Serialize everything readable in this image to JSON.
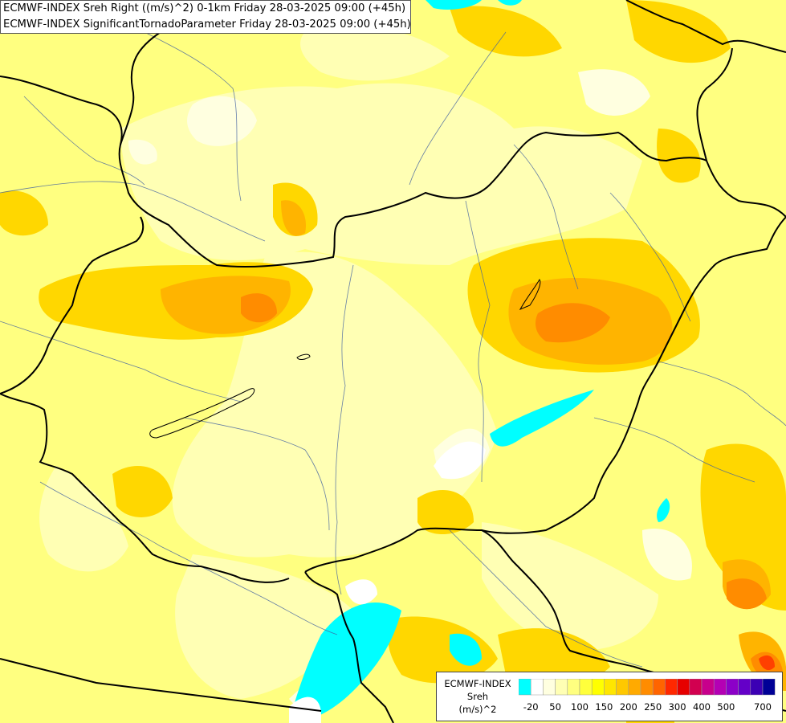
{
  "title_lines": [
    "ECMWF-INDEX Sreh Right ((m/s)^2) 0-1km Friday 28-03-2025 09:00 (+45h)",
    "ECMWF-INDEX SignificantTornadoParameter Friday 28-03-2025 09:00 (+45h)"
  ],
  "legend": {
    "model": "ECMWF-INDEX",
    "parameter": "Sreh",
    "unit": "(m/s)^2",
    "swatch_colors": [
      "#00ffff",
      "#ffffff",
      "#ffffe0",
      "#ffffb4",
      "#ffff80",
      "#ffff3c",
      "#ffff00",
      "#ffe600",
      "#ffc800",
      "#ffaa00",
      "#ff8c00",
      "#ff6400",
      "#ff2800",
      "#e60000",
      "#d20050",
      "#c8008c",
      "#b400b4",
      "#8c00c8",
      "#6400c8",
      "#3c00b4",
      "#000096"
    ],
    "tick_labels": [
      "-20",
      "50",
      "100",
      "150",
      "200",
      "250",
      "300",
      "400",
      "500",
      "700"
    ]
  },
  "field_colors": {
    "negative": "#00ffff",
    "low": "#ffffe0",
    "pale": "#ffffb4",
    "light": "#ffff80",
    "yellow": "#ffff00",
    "gold": "#ffd700",
    "amber": "#ffb400",
    "orange": "#ff8c00",
    "red": "#ff4000"
  }
}
